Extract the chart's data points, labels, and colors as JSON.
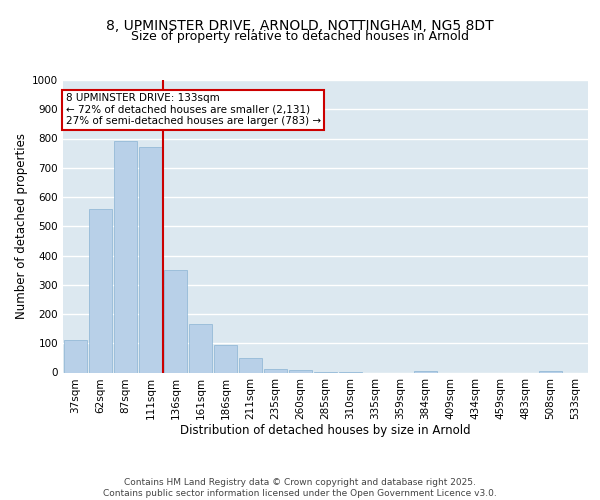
{
  "title_line1": "8, UPMINSTER DRIVE, ARNOLD, NOTTINGHAM, NG5 8DT",
  "title_line2": "Size of property relative to detached houses in Arnold",
  "xlabel": "Distribution of detached houses by size in Arnold",
  "ylabel": "Number of detached properties",
  "categories": [
    "37sqm",
    "62sqm",
    "87sqm",
    "111sqm",
    "136sqm",
    "161sqm",
    "186sqm",
    "211sqm",
    "235sqm",
    "260sqm",
    "285sqm",
    "310sqm",
    "335sqm",
    "359sqm",
    "384sqm",
    "409sqm",
    "434sqm",
    "459sqm",
    "483sqm",
    "508sqm",
    "533sqm"
  ],
  "values": [
    110,
    560,
    790,
    770,
    350,
    165,
    95,
    50,
    13,
    8,
    2,
    1,
    0,
    0,
    5,
    0,
    0,
    0,
    0,
    5,
    0
  ],
  "bar_color": "#b8d0e8",
  "bar_edge_color": "#8ab4d4",
  "background_color": "#dce8f0",
  "grid_color": "#ffffff",
  "vline_color": "#cc0000",
  "vline_pos": 3.5,
  "annotation_box_text": "8 UPMINSTER DRIVE: 133sqm\n← 72% of detached houses are smaller (2,131)\n27% of semi-detached houses are larger (783) →",
  "annotation_box_color": "#cc0000",
  "annotation_box_bg": "#ffffff",
  "ylim": [
    0,
    1000
  ],
  "yticks": [
    0,
    100,
    200,
    300,
    400,
    500,
    600,
    700,
    800,
    900,
    1000
  ],
  "footer_text": "Contains HM Land Registry data © Crown copyright and database right 2025.\nContains public sector information licensed under the Open Government Licence v3.0.",
  "title_fontsize": 10,
  "subtitle_fontsize": 9,
  "axis_label_fontsize": 8.5,
  "tick_fontsize": 7.5,
  "footer_fontsize": 6.5,
  "annotation_fontsize": 7.5
}
